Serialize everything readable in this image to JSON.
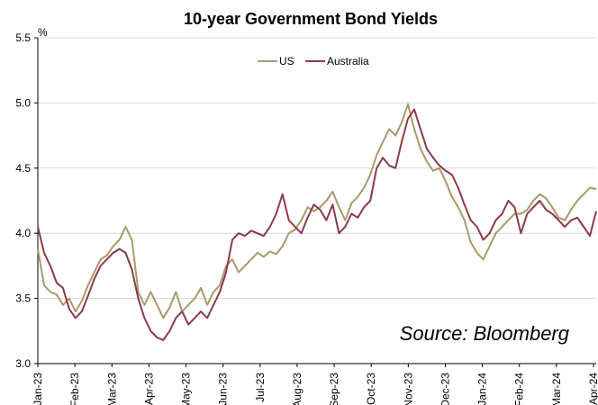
{
  "chart_data": {
    "type": "line",
    "title": "10-year Government Bond Yields",
    "ylabel": "%",
    "xlabel": "",
    "ylim": [
      3.0,
      5.5
    ],
    "yticks": [
      "3.0",
      "3.5",
      "4.0",
      "4.5",
      "5.0",
      "5.5"
    ],
    "x_tick_labels": [
      "Jan-23",
      "Feb-23",
      "Mar-23",
      "Apr-23",
      "May-23",
      "Jun-23",
      "Jul-23",
      "Aug-23",
      "Sep-23",
      "Oct-23",
      "Nov-23",
      "Dec-23",
      "Jan-24",
      "Feb-24",
      "Mar-24",
      "Apr-24"
    ],
    "x_start": "Jan-23",
    "x_end": "Apr-24",
    "grid": true,
    "legend": "top-center",
    "annotation": "Source: Bloomberg",
    "series": [
      {
        "name": "US",
        "color": "#a89a6a",
        "values": [
          3.88,
          3.6,
          3.55,
          3.53,
          3.45,
          3.5,
          3.4,
          3.48,
          3.6,
          3.7,
          3.8,
          3.83,
          3.9,
          3.95,
          4.05,
          3.95,
          3.55,
          3.45,
          3.55,
          3.45,
          3.35,
          3.43,
          3.55,
          3.4,
          3.45,
          3.5,
          3.58,
          3.45,
          3.55,
          3.6,
          3.75,
          3.8,
          3.7,
          3.75,
          3.8,
          3.85,
          3.82,
          3.86,
          3.84,
          3.9,
          4.0,
          4.03,
          4.1,
          4.2,
          4.17,
          4.2,
          4.25,
          4.32,
          4.2,
          4.1,
          4.23,
          4.28,
          4.35,
          4.45,
          4.6,
          4.7,
          4.8,
          4.75,
          4.85,
          4.99,
          4.8,
          4.65,
          4.55,
          4.48,
          4.5,
          4.4,
          4.28,
          4.2,
          4.1,
          3.93,
          3.85,
          3.8,
          3.9,
          4.0,
          4.05,
          4.1,
          4.15,
          4.15,
          4.18,
          4.25,
          4.3,
          4.27,
          4.2,
          4.12,
          4.1,
          4.18,
          4.25,
          4.3,
          4.35,
          4.34
        ]
      },
      {
        "name": "Australia",
        "color": "#8b3a4a",
        "values": [
          4.05,
          3.85,
          3.75,
          3.62,
          3.58,
          3.42,
          3.35,
          3.4,
          3.52,
          3.65,
          3.75,
          3.8,
          3.85,
          3.88,
          3.85,
          3.72,
          3.5,
          3.35,
          3.25,
          3.2,
          3.18,
          3.25,
          3.35,
          3.4,
          3.3,
          3.35,
          3.4,
          3.35,
          3.45,
          3.55,
          3.7,
          3.95,
          4.0,
          3.98,
          4.02,
          4.0,
          3.98,
          4.05,
          4.15,
          4.3,
          4.1,
          4.05,
          4.0,
          4.12,
          4.22,
          4.18,
          4.1,
          4.22,
          4.0,
          4.05,
          4.15,
          4.12,
          4.2,
          4.25,
          4.5,
          4.58,
          4.52,
          4.5,
          4.7,
          4.88,
          4.95,
          4.8,
          4.65,
          4.58,
          4.52,
          4.48,
          4.45,
          4.35,
          4.22,
          4.1,
          4.05,
          3.95,
          4.0,
          4.1,
          4.15,
          4.25,
          4.2,
          4.0,
          4.15,
          4.2,
          4.25,
          4.18,
          4.15,
          4.1,
          4.05,
          4.1,
          4.12,
          4.05,
          3.98,
          4.17
        ]
      }
    ]
  }
}
